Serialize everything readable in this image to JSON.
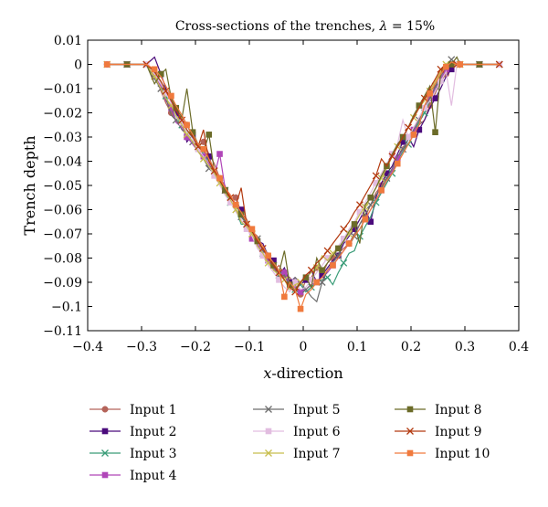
{
  "chart_data": {
    "type": "line",
    "title": "Cross-sections of the trenches, λ = 15%",
    "title_parts": {
      "prefix": "Cross-sections of the trenches, ",
      "symbol": "λ",
      "suffix": " = 15%"
    },
    "xlabel": "x-direction",
    "xlabel_parts": {
      "symbol": "x",
      "rest": "-direction"
    },
    "ylabel": "Trench depth",
    "xlim": [
      -0.4,
      0.4
    ],
    "ylim": [
      -0.11,
      0.01
    ],
    "xticks": [
      -0.4,
      -0.3,
      -0.2,
      -0.1,
      0,
      0.1,
      0.2,
      0.3,
      0.4
    ],
    "xtick_labels": [
      "−0.4",
      "−0.3",
      "−0.2",
      "−0.1",
      "0",
      "0.1",
      "0.2",
      "0.3",
      "0.4"
    ],
    "yticks": [
      0.01,
      0,
      -0.01,
      -0.02,
      -0.03,
      -0.04,
      -0.05,
      -0.06,
      -0.07,
      -0.08,
      -0.09,
      -0.1,
      -0.11
    ],
    "ytick_labels": [
      "0.01",
      "0",
      "−0.01",
      "−0.02",
      "−0.03",
      "−0.04",
      "−0.05",
      "−0.06",
      "−0.07",
      "−0.08",
      "−0.09",
      "−0.1",
      "−0.11"
    ],
    "grid": false,
    "legend_position": "bottom",
    "x": [
      -0.364,
      -0.327,
      -0.291,
      -0.276,
      -0.264,
      -0.255,
      -0.245,
      -0.236,
      -0.225,
      -0.216,
      -0.205,
      -0.195,
      -0.185,
      -0.175,
      -0.165,
      -0.155,
      -0.145,
      -0.135,
      -0.125,
      -0.115,
      -0.105,
      -0.095,
      -0.085,
      -0.075,
      -0.065,
      -0.055,
      -0.045,
      -0.035,
      -0.025,
      -0.015,
      -0.005,
      0.005,
      0.015,
      0.025,
      0.035,
      0.045,
      0.055,
      0.065,
      0.075,
      0.085,
      0.095,
      0.105,
      0.115,
      0.125,
      0.135,
      0.145,
      0.155,
      0.165,
      0.175,
      0.185,
      0.195,
      0.205,
      0.215,
      0.225,
      0.235,
      0.245,
      0.255,
      0.265,
      0.275,
      0.285,
      0.291,
      0.327,
      0.364
    ],
    "series": [
      {
        "name": "Input 1",
        "color": "#b5645a",
        "marker": "circle",
        "values": [
          0,
          0,
          0,
          -0.004,
          -0.011,
          -0.016,
          -0.02,
          -0.023,
          -0.021,
          -0.025,
          -0.03,
          -0.034,
          -0.032,
          -0.037,
          -0.041,
          -0.047,
          -0.05,
          -0.056,
          -0.055,
          -0.061,
          -0.064,
          -0.069,
          -0.071,
          -0.077,
          -0.079,
          -0.085,
          -0.083,
          -0.087,
          -0.088,
          -0.091,
          -0.095,
          -0.089,
          -0.088,
          -0.084,
          -0.087,
          -0.082,
          -0.08,
          -0.078,
          -0.076,
          -0.074,
          -0.07,
          -0.066,
          -0.063,
          -0.058,
          -0.053,
          -0.05,
          -0.045,
          -0.044,
          -0.039,
          -0.034,
          -0.033,
          -0.029,
          -0.025,
          -0.023,
          -0.017,
          -0.012,
          -0.007,
          -0.004,
          -0.001,
          0,
          0,
          0,
          0
        ]
      },
      {
        "name": "Input 2",
        "color": "#4b0b7c",
        "marker": "square",
        "values": [
          0,
          0,
          0,
          0.003,
          -0.004,
          -0.01,
          -0.016,
          -0.02,
          -0.024,
          -0.032,
          -0.029,
          -0.034,
          -0.036,
          -0.038,
          -0.045,
          -0.048,
          -0.052,
          -0.056,
          -0.059,
          -0.06,
          -0.066,
          -0.068,
          -0.073,
          -0.074,
          -0.079,
          -0.081,
          -0.087,
          -0.084,
          -0.09,
          -0.088,
          -0.091,
          -0.089,
          -0.085,
          -0.09,
          -0.087,
          -0.084,
          -0.081,
          -0.079,
          -0.074,
          -0.071,
          -0.068,
          -0.064,
          -0.06,
          -0.065,
          -0.055,
          -0.049,
          -0.045,
          -0.042,
          -0.037,
          -0.032,
          -0.03,
          -0.034,
          -0.027,
          -0.023,
          -0.018,
          -0.014,
          -0.01,
          -0.005,
          -0.002,
          0,
          0,
          0,
          0
        ]
      },
      {
        "name": "Input 3",
        "color": "#3a9c78",
        "marker": "x",
        "values": [
          0,
          0,
          0,
          -0.003,
          -0.008,
          -0.013,
          -0.019,
          -0.022,
          -0.025,
          -0.027,
          -0.031,
          -0.034,
          -0.037,
          -0.04,
          -0.044,
          -0.049,
          -0.053,
          -0.057,
          -0.06,
          -0.066,
          -0.066,
          -0.07,
          -0.075,
          -0.078,
          -0.08,
          -0.085,
          -0.087,
          -0.089,
          -0.092,
          -0.093,
          -0.091,
          -0.094,
          -0.092,
          -0.09,
          -0.089,
          -0.088,
          -0.091,
          -0.086,
          -0.082,
          -0.078,
          -0.077,
          -0.071,
          -0.067,
          -0.063,
          -0.057,
          -0.053,
          -0.049,
          -0.045,
          -0.04,
          -0.036,
          -0.033,
          -0.028,
          -0.024,
          -0.02,
          -0.015,
          -0.01,
          -0.006,
          -0.002,
          0.001,
          0,
          0,
          0,
          0
        ]
      },
      {
        "name": "Input 4",
        "color": "#b046b8",
        "marker": "square",
        "values": [
          0,
          0,
          0,
          -0.005,
          -0.009,
          -0.015,
          -0.018,
          -0.024,
          -0.026,
          -0.03,
          -0.033,
          -0.036,
          -0.038,
          -0.041,
          -0.046,
          -0.037,
          -0.051,
          -0.054,
          -0.058,
          -0.062,
          -0.067,
          -0.072,
          -0.074,
          -0.078,
          -0.081,
          -0.084,
          -0.088,
          -0.086,
          -0.091,
          -0.092,
          -0.094,
          -0.093,
          -0.091,
          -0.09,
          -0.088,
          -0.086,
          -0.083,
          -0.08,
          -0.077,
          -0.074,
          -0.071,
          -0.068,
          -0.064,
          -0.06,
          -0.056,
          -0.052,
          -0.048,
          -0.044,
          -0.039,
          -0.035,
          -0.031,
          -0.027,
          -0.022,
          -0.018,
          -0.014,
          -0.01,
          -0.006,
          -0.002,
          0,
          0,
          0,
          0,
          0
        ]
      },
      {
        "name": "Input 5",
        "color": "#6d6d6d",
        "marker": "x",
        "values": [
          0,
          0,
          0,
          -0.006,
          -0.01,
          -0.014,
          -0.021,
          -0.023,
          -0.027,
          -0.029,
          -0.032,
          -0.036,
          -0.039,
          -0.043,
          -0.045,
          -0.049,
          -0.052,
          -0.055,
          -0.06,
          -0.063,
          -0.066,
          -0.069,
          -0.072,
          -0.077,
          -0.08,
          -0.083,
          -0.088,
          -0.087,
          -0.092,
          -0.088,
          -0.09,
          -0.093,
          -0.096,
          -0.098,
          -0.09,
          -0.085,
          -0.082,
          -0.079,
          -0.072,
          -0.075,
          -0.071,
          -0.066,
          -0.062,
          -0.058,
          -0.054,
          -0.051,
          -0.047,
          -0.043,
          -0.038,
          -0.035,
          -0.031,
          -0.027,
          -0.023,
          -0.018,
          -0.014,
          -0.009,
          -0.005,
          -0.001,
          0.002,
          0,
          0,
          0,
          0
        ]
      },
      {
        "name": "Input 6",
        "color": "#e2bde0",
        "marker": "square",
        "values": [
          0,
          0,
          0,
          -0.004,
          -0.008,
          -0.012,
          -0.016,
          -0.022,
          -0.024,
          -0.028,
          -0.031,
          -0.035,
          -0.038,
          -0.042,
          -0.046,
          -0.05,
          -0.054,
          -0.057,
          -0.061,
          -0.064,
          -0.068,
          -0.071,
          -0.076,
          -0.079,
          -0.083,
          -0.086,
          -0.089,
          -0.092,
          -0.094,
          -0.09,
          -0.093,
          -0.092,
          -0.089,
          -0.086,
          -0.083,
          -0.08,
          -0.078,
          -0.075,
          -0.072,
          -0.068,
          -0.065,
          -0.061,
          -0.057,
          -0.053,
          -0.049,
          -0.045,
          -0.041,
          -0.037,
          -0.033,
          -0.023,
          -0.03,
          -0.026,
          -0.022,
          -0.018,
          -0.015,
          -0.011,
          -0.007,
          -0.003,
          -0.017,
          0,
          0,
          0,
          0
        ]
      },
      {
        "name": "Input 7",
        "color": "#c8be4e",
        "marker": "x",
        "values": [
          0,
          0,
          0,
          -0.005,
          -0.01,
          -0.014,
          -0.017,
          -0.021,
          -0.025,
          -0.029,
          -0.032,
          -0.036,
          -0.039,
          -0.042,
          -0.045,
          -0.049,
          -0.053,
          -0.056,
          -0.06,
          -0.065,
          -0.067,
          -0.07,
          -0.075,
          -0.078,
          -0.082,
          -0.085,
          -0.087,
          -0.089,
          -0.093,
          -0.091,
          -0.09,
          -0.088,
          -0.086,
          -0.084,
          -0.079,
          -0.081,
          -0.078,
          -0.076,
          -0.073,
          -0.07,
          -0.066,
          -0.062,
          -0.059,
          -0.055,
          -0.051,
          -0.047,
          -0.043,
          -0.038,
          -0.034,
          -0.03,
          -0.026,
          -0.022,
          -0.018,
          -0.015,
          -0.011,
          -0.007,
          -0.003,
          0,
          0,
          0,
          0,
          0,
          0
        ]
      },
      {
        "name": "Input 8",
        "color": "#6b6b28",
        "marker": "square",
        "values": [
          0,
          0,
          0,
          -0.008,
          -0.004,
          -0.002,
          -0.014,
          -0.018,
          -0.022,
          -0.01,
          -0.028,
          -0.033,
          -0.036,
          -0.029,
          -0.044,
          -0.048,
          -0.052,
          -0.055,
          -0.058,
          -0.062,
          -0.065,
          -0.069,
          -0.073,
          -0.076,
          -0.08,
          -0.083,
          -0.086,
          -0.077,
          -0.091,
          -0.093,
          -0.09,
          -0.088,
          -0.092,
          -0.08,
          -0.085,
          -0.082,
          -0.079,
          -0.076,
          -0.073,
          -0.069,
          -0.066,
          -0.074,
          -0.058,
          -0.055,
          -0.051,
          -0.046,
          -0.042,
          -0.037,
          -0.033,
          -0.03,
          -0.026,
          -0.021,
          -0.017,
          -0.013,
          -0.009,
          -0.028,
          -0.004,
          0,
          0,
          0.003,
          0,
          0,
          0
        ]
      },
      {
        "name": "Input 9",
        "color": "#b33a10",
        "marker": "x",
        "values": [
          0,
          0,
          0,
          -0.003,
          -0.007,
          -0.011,
          -0.015,
          -0.019,
          -0.023,
          -0.027,
          -0.03,
          -0.034,
          -0.027,
          -0.04,
          -0.044,
          -0.048,
          -0.051,
          -0.055,
          -0.058,
          -0.051,
          -0.066,
          -0.069,
          -0.073,
          -0.076,
          -0.08,
          -0.083,
          -0.086,
          -0.089,
          -0.092,
          -0.094,
          -0.09,
          -0.087,
          -0.085,
          -0.082,
          -0.08,
          -0.077,
          -0.074,
          -0.071,
          -0.068,
          -0.065,
          -0.061,
          -0.058,
          -0.054,
          -0.05,
          -0.046,
          -0.039,
          -0.042,
          -0.038,
          -0.034,
          -0.03,
          -0.026,
          -0.022,
          -0.018,
          -0.014,
          -0.01,
          -0.006,
          -0.002,
          -0.001,
          0.001,
          0,
          0,
          0,
          0
        ]
      },
      {
        "name": "Input 10",
        "color": "#f07a3d",
        "marker": "square",
        "values": [
          0,
          0,
          0,
          -0.002,
          -0.005,
          -0.009,
          -0.013,
          -0.017,
          -0.021,
          -0.025,
          -0.029,
          -0.033,
          -0.035,
          -0.039,
          -0.043,
          -0.047,
          -0.051,
          -0.054,
          -0.058,
          -0.061,
          -0.065,
          -0.068,
          -0.072,
          -0.075,
          -0.079,
          -0.082,
          -0.085,
          -0.096,
          -0.09,
          -0.093,
          -0.101,
          -0.095,
          -0.093,
          -0.09,
          -0.088,
          -0.085,
          -0.083,
          -0.08,
          -0.077,
          -0.074,
          -0.071,
          -0.068,
          -0.064,
          -0.06,
          -0.056,
          -0.052,
          -0.048,
          -0.045,
          -0.041,
          -0.037,
          -0.033,
          -0.029,
          -0.025,
          -0.017,
          -0.012,
          -0.008,
          -0.004,
          -0.001,
          0.001,
          0,
          0,
          0,
          0
        ]
      }
    ]
  }
}
